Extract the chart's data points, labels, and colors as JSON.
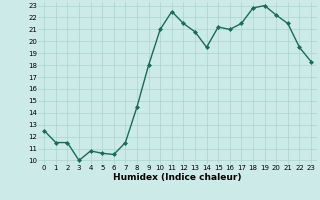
{
  "title": "",
  "xlabel": "Humidex (Indice chaleur)",
  "x": [
    0,
    1,
    2,
    3,
    4,
    5,
    6,
    7,
    8,
    9,
    10,
    11,
    12,
    13,
    14,
    15,
    16,
    17,
    18,
    19,
    20,
    21,
    22,
    23
  ],
  "y": [
    12.5,
    11.5,
    11.5,
    10.0,
    10.8,
    10.6,
    10.5,
    11.5,
    14.5,
    18.0,
    21.0,
    22.5,
    21.5,
    20.8,
    19.5,
    21.2,
    21.0,
    21.5,
    22.8,
    23.0,
    22.2,
    21.5,
    19.5,
    18.3
  ],
  "line_color": "#1a6b5a",
  "marker": "D",
  "marker_size": 2.0,
  "bg_color": "#cceae7",
  "grid_color": "#aad4d0",
  "ylim_min": 10,
  "ylim_max": 23,
  "yticks": [
    10,
    11,
    12,
    13,
    14,
    15,
    16,
    17,
    18,
    19,
    20,
    21,
    22,
    23
  ],
  "xticks": [
    0,
    1,
    2,
    3,
    4,
    5,
    6,
    7,
    8,
    9,
    10,
    11,
    12,
    13,
    14,
    15,
    16,
    17,
    18,
    19,
    20,
    21,
    22,
    23
  ],
  "tick_fontsize": 5.0,
  "xlabel_fontsize": 6.5,
  "linewidth": 1.0
}
